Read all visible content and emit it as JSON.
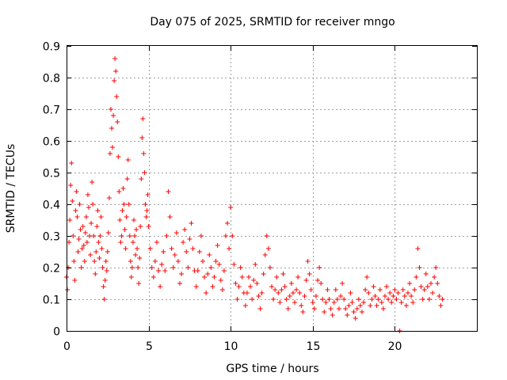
{
  "chart_data": {
    "type": "scatter",
    "title": "Day 075 of 2025, SRMTID for receiver mngo",
    "xlabel": "GPS time / hours",
    "ylabel": "SRMTID / TECUs",
    "xlim": [
      0,
      25
    ],
    "ylim": [
      0,
      0.9
    ],
    "xticks": [
      0,
      5,
      10,
      15,
      20
    ],
    "xtick_labels": [
      "0",
      "5",
      "10",
      "15",
      "20"
    ],
    "yticks": [
      0,
      0.1,
      0.2,
      0.3,
      0.4,
      0.5,
      0.6,
      0.7,
      0.8,
      0.9
    ],
    "ytick_labels": [
      "0",
      "0.1",
      "0.2",
      "0.3",
      "0.4",
      "0.5",
      "0.6",
      "0.7",
      "0.8",
      "0.9"
    ],
    "grid": true,
    "marker": "plus",
    "series": [
      {
        "name": "SRMTID",
        "color": "#ff0000",
        "points": [
          [
            0.0,
            0.17
          ],
          [
            0.05,
            0.13
          ],
          [
            0.1,
            0.2
          ],
          [
            0.15,
            0.28
          ],
          [
            0.2,
            0.35
          ],
          [
            0.25,
            0.46
          ],
          [
            0.3,
            0.53
          ],
          [
            0.35,
            0.41
          ],
          [
            0.4,
            0.3
          ],
          [
            0.45,
            0.22
          ],
          [
            0.5,
            0.16
          ],
          [
            0.55,
            0.38
          ],
          [
            0.6,
            0.44
          ],
          [
            0.65,
            0.36
          ],
          [
            0.7,
            0.25
          ],
          [
            0.75,
            0.29
          ],
          [
            0.8,
            0.4
          ],
          [
            0.85,
            0.32
          ],
          [
            0.9,
            0.2
          ],
          [
            0.95,
            0.26
          ],
          [
            1.0,
            0.33
          ],
          [
            1.05,
            0.27
          ],
          [
            1.1,
            0.22
          ],
          [
            1.15,
            0.31
          ],
          [
            1.2,
            0.36
          ],
          [
            1.25,
            0.28
          ],
          [
            1.3,
            0.43
          ],
          [
            1.35,
            0.39
          ],
          [
            1.4,
            0.3
          ],
          [
            1.45,
            0.24
          ],
          [
            1.5,
            0.34
          ],
          [
            1.55,
            0.47
          ],
          [
            1.6,
            0.4
          ],
          [
            1.65,
            0.3
          ],
          [
            1.7,
            0.22
          ],
          [
            1.75,
            0.18
          ],
          [
            1.8,
            0.25
          ],
          [
            1.85,
            0.33
          ],
          [
            1.9,
            0.38
          ],
          [
            1.95,
            0.28
          ],
          [
            2.0,
            0.23
          ],
          [
            2.05,
            0.3
          ],
          [
            2.1,
            0.36
          ],
          [
            2.15,
            0.26
          ],
          [
            2.2,
            0.2
          ],
          [
            2.25,
            0.14
          ],
          [
            2.3,
            0.1
          ],
          [
            2.35,
            0.16
          ],
          [
            2.4,
            0.22
          ],
          [
            2.45,
            0.19
          ],
          [
            2.5,
            0.25
          ],
          [
            2.55,
            0.31
          ],
          [
            2.6,
            0.42
          ],
          [
            2.65,
            0.56
          ],
          [
            2.7,
            0.7
          ],
          [
            2.75,
            0.64
          ],
          [
            2.8,
            0.58
          ],
          [
            2.85,
            0.68
          ],
          [
            2.9,
            0.79
          ],
          [
            2.95,
            0.86
          ],
          [
            3.0,
            0.82
          ],
          [
            3.05,
            0.74
          ],
          [
            3.1,
            0.66
          ],
          [
            3.15,
            0.55
          ],
          [
            3.2,
            0.44
          ],
          [
            3.25,
            0.35
          ],
          [
            3.3,
            0.28
          ],
          [
            3.35,
            0.3
          ],
          [
            3.4,
            0.38
          ],
          [
            3.45,
            0.45
          ],
          [
            3.5,
            0.4
          ],
          [
            3.55,
            0.32
          ],
          [
            3.6,
            0.26
          ],
          [
            3.65,
            0.36
          ],
          [
            3.7,
            0.48
          ],
          [
            3.75,
            0.54
          ],
          [
            3.8,
            0.4
          ],
          [
            3.85,
            0.3
          ],
          [
            3.9,
            0.22
          ],
          [
            3.95,
            0.17
          ],
          [
            4.0,
            0.2
          ],
          [
            4.05,
            0.28
          ],
          [
            4.1,
            0.35
          ],
          [
            4.15,
            0.3
          ],
          [
            4.2,
            0.24
          ],
          [
            4.25,
            0.32
          ],
          [
            4.3,
            0.26
          ],
          [
            4.35,
            0.2
          ],
          [
            4.4,
            0.15
          ],
          [
            4.45,
            0.23
          ],
          [
            4.5,
            0.33
          ],
          [
            4.55,
            0.48
          ],
          [
            4.6,
            0.61
          ],
          [
            4.65,
            0.67
          ],
          [
            4.7,
            0.56
          ],
          [
            4.75,
            0.5
          ],
          [
            4.8,
            0.4
          ],
          [
            4.85,
            0.36
          ],
          [
            4.9,
            0.38
          ],
          [
            4.95,
            0.43
          ],
          [
            5.0,
            0.33
          ],
          [
            5.1,
            0.26
          ],
          [
            5.2,
            0.2
          ],
          [
            5.3,
            0.17
          ],
          [
            5.4,
            0.22
          ],
          [
            5.5,
            0.28
          ],
          [
            5.6,
            0.19
          ],
          [
            5.7,
            0.14
          ],
          [
            5.8,
            0.21
          ],
          [
            5.9,
            0.25
          ],
          [
            6.0,
            0.19
          ],
          [
            6.1,
            0.3
          ],
          [
            6.2,
            0.44
          ],
          [
            6.3,
            0.36
          ],
          [
            6.4,
            0.26
          ],
          [
            6.5,
            0.2
          ],
          [
            6.6,
            0.24
          ],
          [
            6.7,
            0.31
          ],
          [
            6.8,
            0.22
          ],
          [
            6.9,
            0.15
          ],
          [
            7.0,
            0.18
          ],
          [
            7.1,
            0.28
          ],
          [
            7.2,
            0.32
          ],
          [
            7.3,
            0.25
          ],
          [
            7.4,
            0.2
          ],
          [
            7.5,
            0.29
          ],
          [
            7.6,
            0.34
          ],
          [
            7.7,
            0.26
          ],
          [
            7.8,
            0.19
          ],
          [
            7.9,
            0.14
          ],
          [
            8.0,
            0.19
          ],
          [
            8.1,
            0.25
          ],
          [
            8.2,
            0.3
          ],
          [
            8.3,
            0.22
          ],
          [
            8.4,
            0.17
          ],
          [
            8.5,
            0.12
          ],
          [
            8.6,
            0.18
          ],
          [
            8.7,
            0.24
          ],
          [
            8.8,
            0.2
          ],
          [
            8.9,
            0.14
          ],
          [
            9.0,
            0.17
          ],
          [
            9.1,
            0.22
          ],
          [
            9.2,
            0.27
          ],
          [
            9.3,
            0.21
          ],
          [
            9.4,
            0.16
          ],
          [
            9.5,
            0.13
          ],
          [
            9.6,
            0.19
          ],
          [
            9.7,
            0.3
          ],
          [
            9.8,
            0.34
          ],
          [
            9.9,
            0.26
          ],
          [
            10.0,
            0.39
          ],
          [
            10.1,
            0.3
          ],
          [
            10.2,
            0.21
          ],
          [
            10.3,
            0.15
          ],
          [
            10.4,
            0.1
          ],
          [
            10.5,
            0.14
          ],
          [
            10.6,
            0.2
          ],
          [
            10.7,
            0.17
          ],
          [
            10.8,
            0.12
          ],
          [
            10.9,
            0.08
          ],
          [
            11.0,
            0.12
          ],
          [
            11.1,
            0.17
          ],
          [
            11.2,
            0.14
          ],
          [
            11.3,
            0.1
          ],
          [
            11.4,
            0.16
          ],
          [
            11.5,
            0.21
          ],
          [
            11.6,
            0.15
          ],
          [
            11.7,
            0.11
          ],
          [
            11.8,
            0.07
          ],
          [
            11.9,
            0.12
          ],
          [
            12.0,
            0.18
          ],
          [
            12.1,
            0.24
          ],
          [
            12.2,
            0.3
          ],
          [
            12.3,
            0.26
          ],
          [
            12.4,
            0.2
          ],
          [
            12.5,
            0.14
          ],
          [
            12.6,
            0.1
          ],
          [
            12.7,
            0.13
          ],
          [
            12.8,
            0.17
          ],
          [
            12.9,
            0.12
          ],
          [
            13.0,
            0.09
          ],
          [
            13.1,
            0.13
          ],
          [
            13.2,
            0.18
          ],
          [
            13.3,
            0.14
          ],
          [
            13.4,
            0.1
          ],
          [
            13.5,
            0.07
          ],
          [
            13.6,
            0.11
          ],
          [
            13.7,
            0.15
          ],
          [
            13.8,
            0.12
          ],
          [
            13.9,
            0.09
          ],
          [
            14.0,
            0.13
          ],
          [
            14.1,
            0.17
          ],
          [
            14.2,
            0.12
          ],
          [
            14.3,
            0.08
          ],
          [
            14.4,
            0.06
          ],
          [
            14.5,
            0.11
          ],
          [
            14.6,
            0.16
          ],
          [
            14.7,
            0.22
          ],
          [
            14.8,
            0.18
          ],
          [
            14.9,
            0.13
          ],
          [
            15.0,
            0.09
          ],
          [
            15.1,
            0.07
          ],
          [
            15.2,
            0.11
          ],
          [
            15.3,
            0.16
          ],
          [
            15.4,
            0.2
          ],
          [
            15.5,
            0.15
          ],
          [
            15.6,
            0.1
          ],
          [
            15.7,
            0.06
          ],
          [
            15.8,
            0.09
          ],
          [
            15.9,
            0.13
          ],
          [
            16.0,
            0.1
          ],
          [
            16.1,
            0.07
          ],
          [
            16.2,
            0.05
          ],
          [
            16.3,
            0.09
          ],
          [
            16.4,
            0.13
          ],
          [
            16.5,
            0.1
          ],
          [
            16.6,
            0.07
          ],
          [
            16.7,
            0.11
          ],
          [
            16.8,
            0.15
          ],
          [
            16.9,
            0.1
          ],
          [
            17.0,
            0.07
          ],
          [
            17.1,
            0.05
          ],
          [
            17.2,
            0.08
          ],
          [
            17.3,
            0.12
          ],
          [
            17.4,
            0.09
          ],
          [
            17.5,
            0.06
          ],
          [
            17.6,
            0.04
          ],
          [
            17.7,
            0.07
          ],
          [
            17.8,
            0.1
          ],
          [
            17.9,
            0.08
          ],
          [
            18.0,
            0.06
          ],
          [
            18.1,
            0.09
          ],
          [
            18.2,
            0.13
          ],
          [
            18.3,
            0.17
          ],
          [
            18.4,
            0.12
          ],
          [
            18.5,
            0.08
          ],
          [
            18.6,
            0.1
          ],
          [
            18.7,
            0.14
          ],
          [
            18.8,
            0.11
          ],
          [
            18.9,
            0.08
          ],
          [
            19.0,
            0.1
          ],
          [
            19.1,
            0.13
          ],
          [
            19.2,
            0.09
          ],
          [
            19.3,
            0.07
          ],
          [
            19.4,
            0.11
          ],
          [
            19.5,
            0.14
          ],
          [
            19.6,
            0.1
          ],
          [
            19.7,
            0.12
          ],
          [
            19.8,
            0.09
          ],
          [
            19.9,
            0.11
          ],
          [
            20.0,
            0.13
          ],
          [
            20.1,
            0.1
          ],
          [
            20.2,
            0.12
          ],
          [
            20.3,
            0.0
          ],
          [
            20.4,
            0.09
          ],
          [
            20.5,
            0.13
          ],
          [
            20.6,
            0.11
          ],
          [
            20.7,
            0.08
          ],
          [
            20.8,
            0.12
          ],
          [
            20.9,
            0.15
          ],
          [
            21.0,
            0.11
          ],
          [
            21.1,
            0.09
          ],
          [
            21.2,
            0.13
          ],
          [
            21.3,
            0.17
          ],
          [
            21.4,
            0.26
          ],
          [
            21.5,
            0.2
          ],
          [
            21.6,
            0.14
          ],
          [
            21.7,
            0.1
          ],
          [
            21.8,
            0.13
          ],
          [
            21.9,
            0.18
          ],
          [
            22.0,
            0.14
          ],
          [
            22.1,
            0.1
          ],
          [
            22.2,
            0.15
          ],
          [
            22.3,
            0.12
          ],
          [
            22.4,
            0.17
          ],
          [
            22.5,
            0.2
          ],
          [
            22.6,
            0.15
          ],
          [
            22.7,
            0.11
          ],
          [
            22.8,
            0.08
          ],
          [
            22.9,
            0.1
          ]
        ]
      }
    ]
  }
}
